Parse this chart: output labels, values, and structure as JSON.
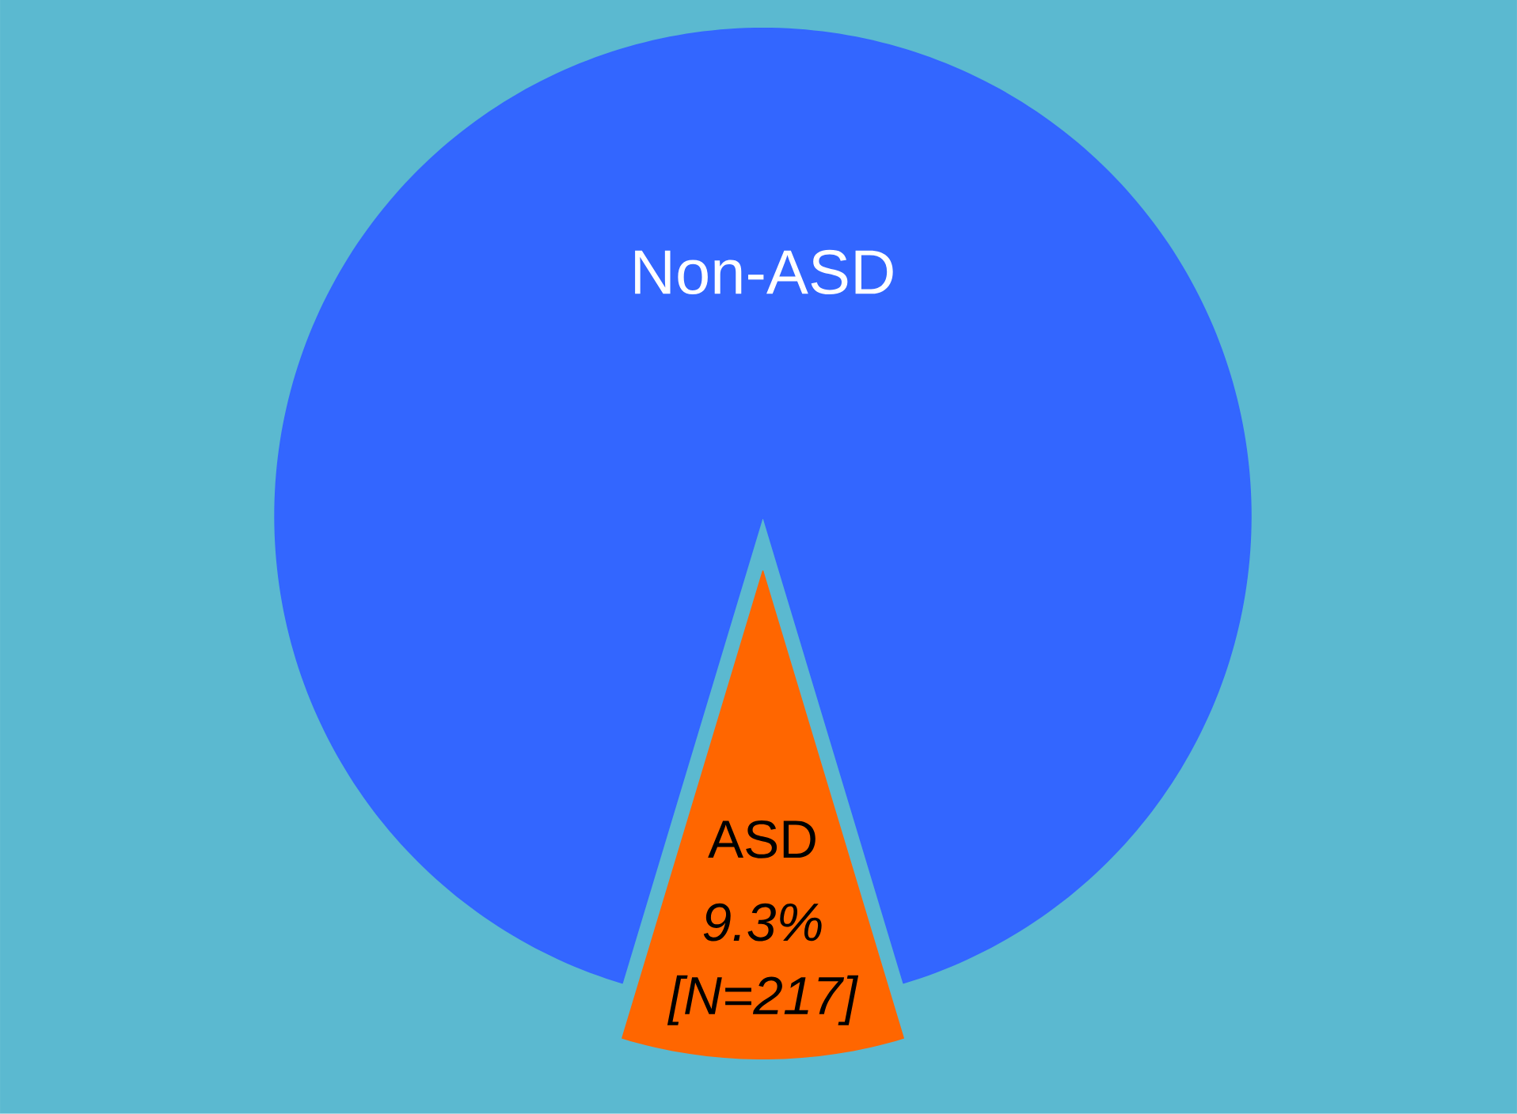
{
  "chart_data": {
    "type": "pie",
    "categories": [
      "Non-ASD",
      "ASD"
    ],
    "values": [
      90.7,
      9.3
    ],
    "colors": [
      "#3366ff",
      "#ff6600"
    ],
    "value_labels": [
      null,
      "9.3%"
    ],
    "annotations": [
      "[N=217]"
    ],
    "legend": false
  }
}
